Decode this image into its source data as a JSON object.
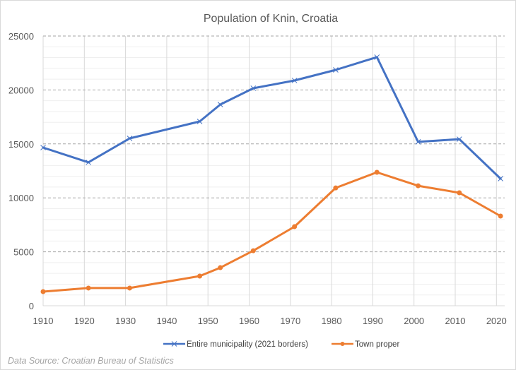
{
  "chart_data": {
    "type": "line",
    "title": "Population of Knin, Croatia",
    "xlabel": "",
    "ylabel": "",
    "xlim": [
      1910,
      2022
    ],
    "ylim": [
      0,
      25000
    ],
    "x_ticks": [
      1910,
      1920,
      1930,
      1940,
      1950,
      1960,
      1970,
      1980,
      1990,
      2000,
      2010,
      2020
    ],
    "x_tick_labels": [
      "1910",
      "1920",
      "1930",
      "1940",
      "1950",
      "1960",
      "1970",
      "1980",
      "1990",
      "2000",
      "2010",
      "2020"
    ],
    "y_ticks": [
      0,
      5000,
      10000,
      15000,
      20000,
      25000
    ],
    "y_tick_labels": [
      "0",
      "5000",
      "10000",
      "15000",
      "20000",
      "25000"
    ],
    "y_minor_step": 1000,
    "grid": true,
    "legend_position": "bottom",
    "series": [
      {
        "name": "Entire municipality (2021 borders)",
        "color": "#4472c4",
        "marker": "x",
        "x": [
          1910,
          1921,
          1931,
          1948,
          1953,
          1961,
          1971,
          1981,
          1991,
          2001,
          2011,
          2021
        ],
        "values": [
          14660,
          13290,
          15510,
          17080,
          18650,
          20160,
          20880,
          21860,
          23040,
          15190,
          15440,
          11780
        ]
      },
      {
        "name": "Town proper",
        "color": "#ed7d31",
        "marker": "circle",
        "x": [
          1910,
          1921,
          1931,
          1948,
          1953,
          1961,
          1971,
          1981,
          1991,
          2001,
          2011,
          2021
        ],
        "values": [
          1310,
          1640,
          1640,
          2750,
          3530,
          5100,
          7330,
          10920,
          12370,
          11120,
          10470,
          8310
        ]
      }
    ],
    "annotation": "Data Source: Croatian Bureau of Statistics"
  }
}
